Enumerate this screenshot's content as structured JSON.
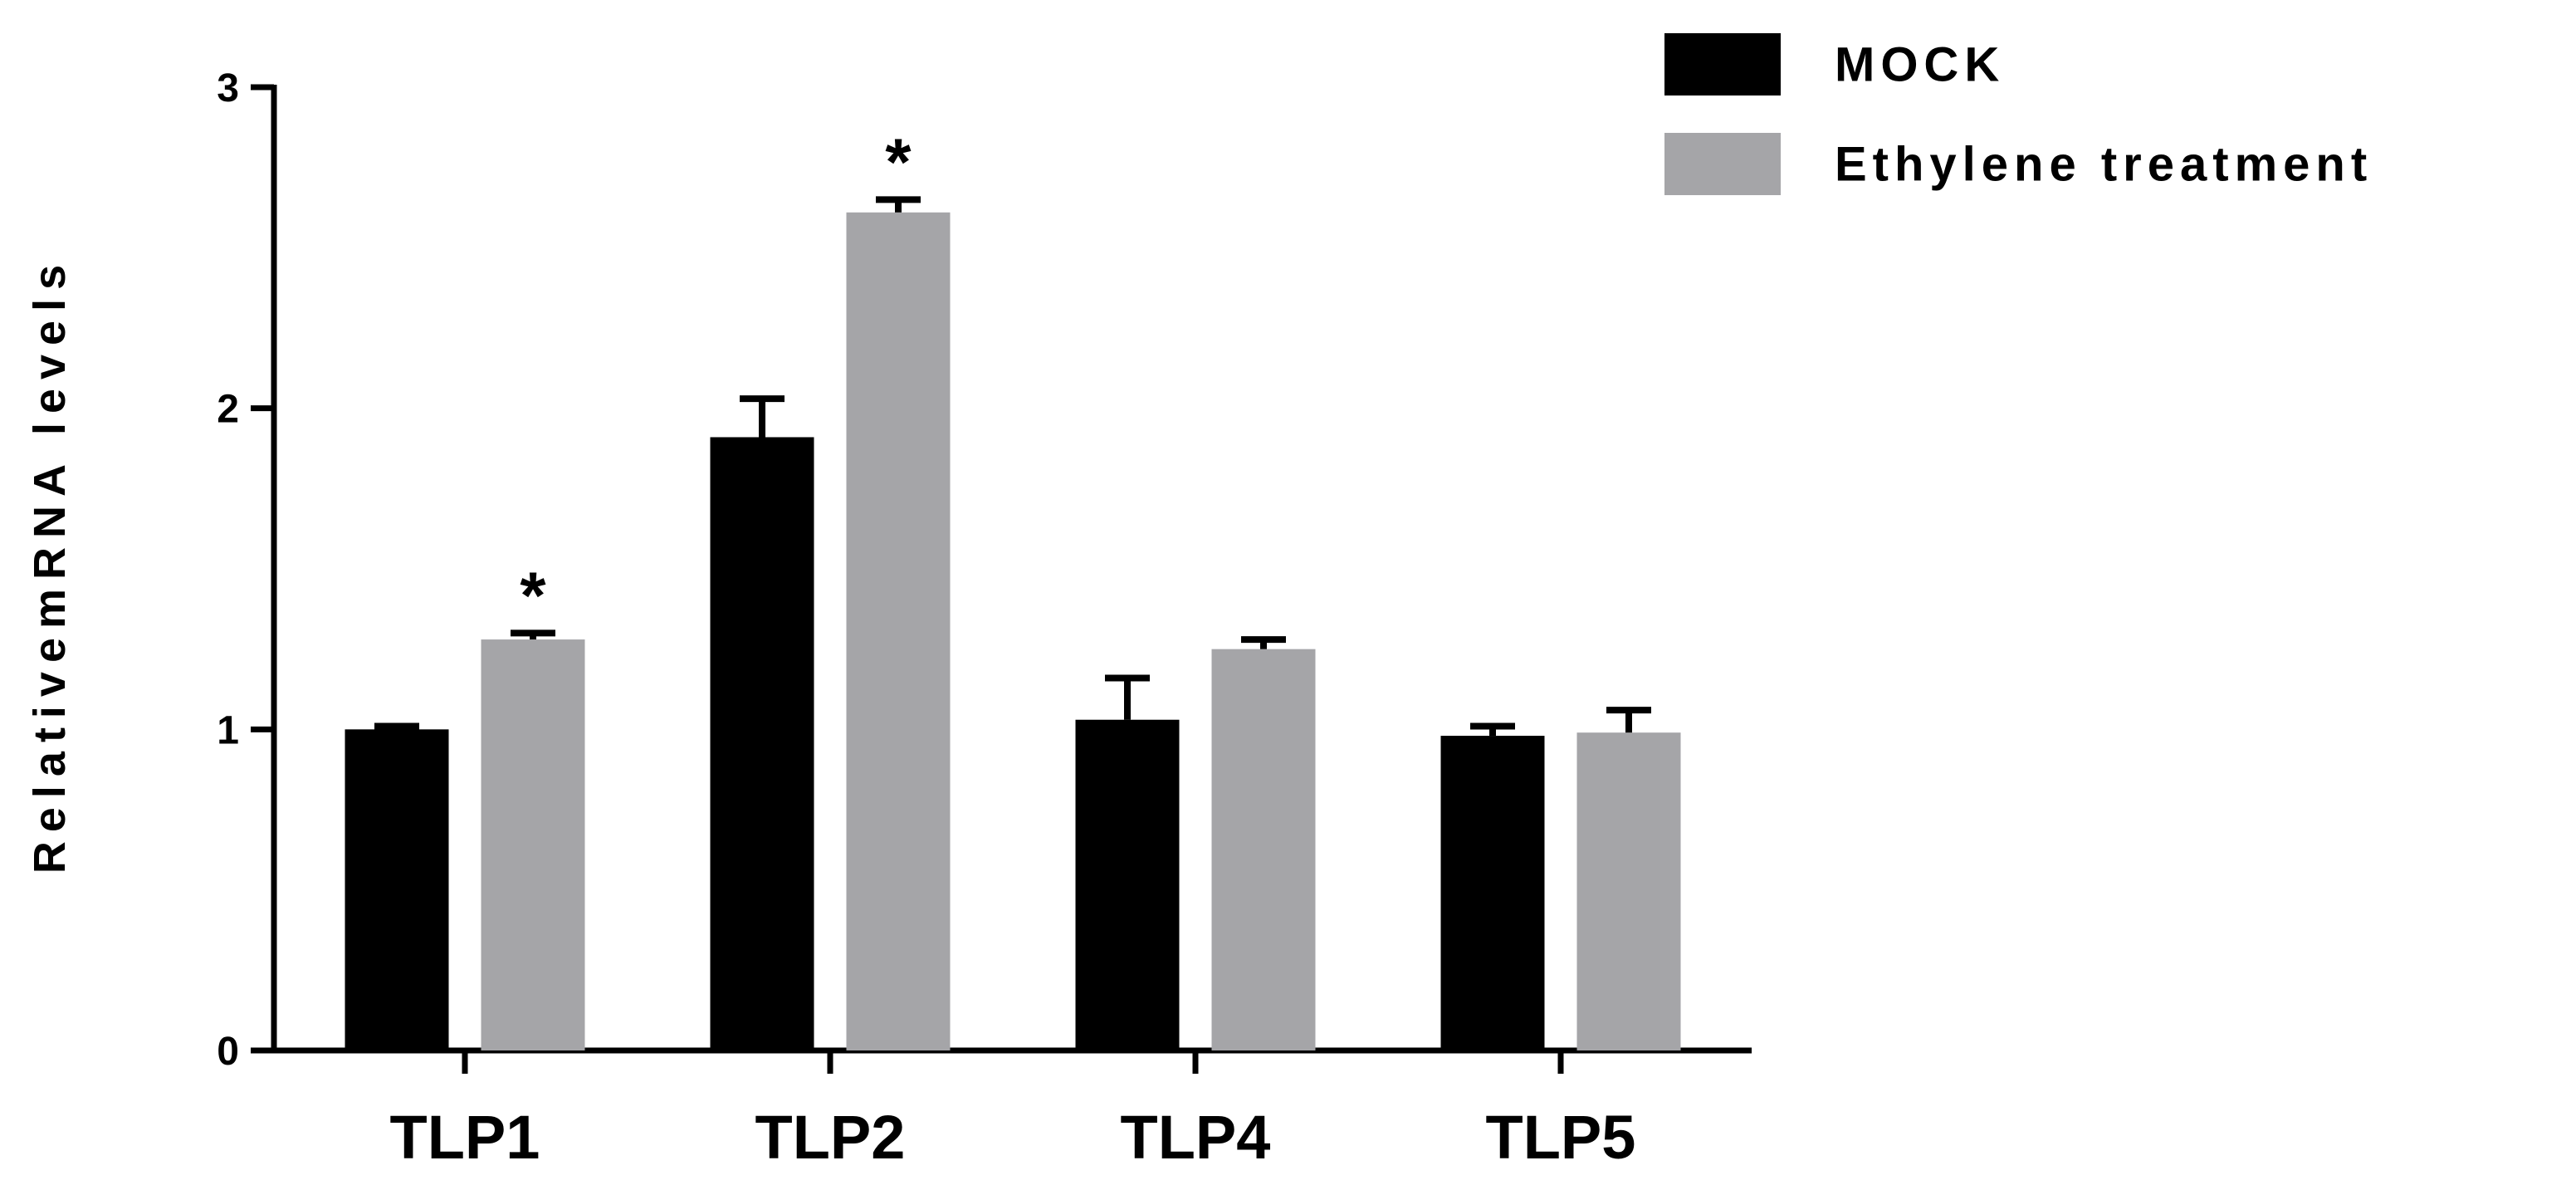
{
  "chart_data": {
    "type": "bar",
    "categories": [
      "TLP1",
      "TLP2",
      "TLP4",
      "TLP5"
    ],
    "series": [
      {
        "name": "MOCK",
        "color": "#000000",
        "values": [
          1.0,
          1.91,
          1.03,
          0.98
        ],
        "errors": [
          0.01,
          0.12,
          0.13,
          0.03
        ],
        "significance": [
          "",
          "",
          "",
          ""
        ]
      },
      {
        "name": "Ethylene treatment",
        "color": "#a5a5a8",
        "values": [
          1.28,
          2.61,
          1.25,
          0.99
        ],
        "errors": [
          0.02,
          0.04,
          0.03,
          0.07
        ],
        "significance": [
          "*",
          "*",
          "",
          ""
        ]
      }
    ],
    "ylabel": "RelativemRNA levels",
    "xlabel": "",
    "ylim": [
      0,
      3
    ],
    "yticks": [
      "0",
      "1",
      "2",
      "3"
    ],
    "legend_position": "top-right",
    "grid": false
  }
}
